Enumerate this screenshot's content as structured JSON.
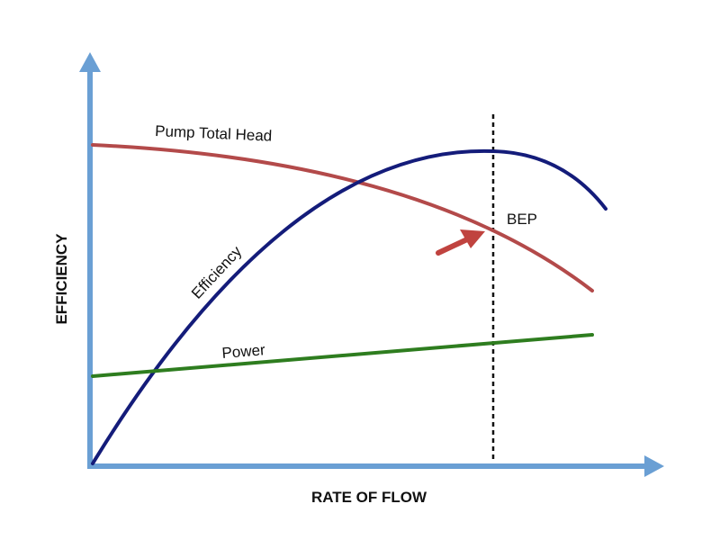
{
  "diagram": {
    "x_axis_label": "RATE OF FLOW",
    "y_axis_label": "EFFICIENCY",
    "curves": {
      "head": "Pump Total Head",
      "efficiency": "Efficiency",
      "power": "Power"
    },
    "marker_label": "BEP"
  },
  "colors": {
    "axis": "#6a9fd4",
    "head": "#b34a4a",
    "efficiency": "#141c7a",
    "power": "#2e7d1f",
    "arrow": "#c0433f",
    "bep_line": "#111111"
  }
}
